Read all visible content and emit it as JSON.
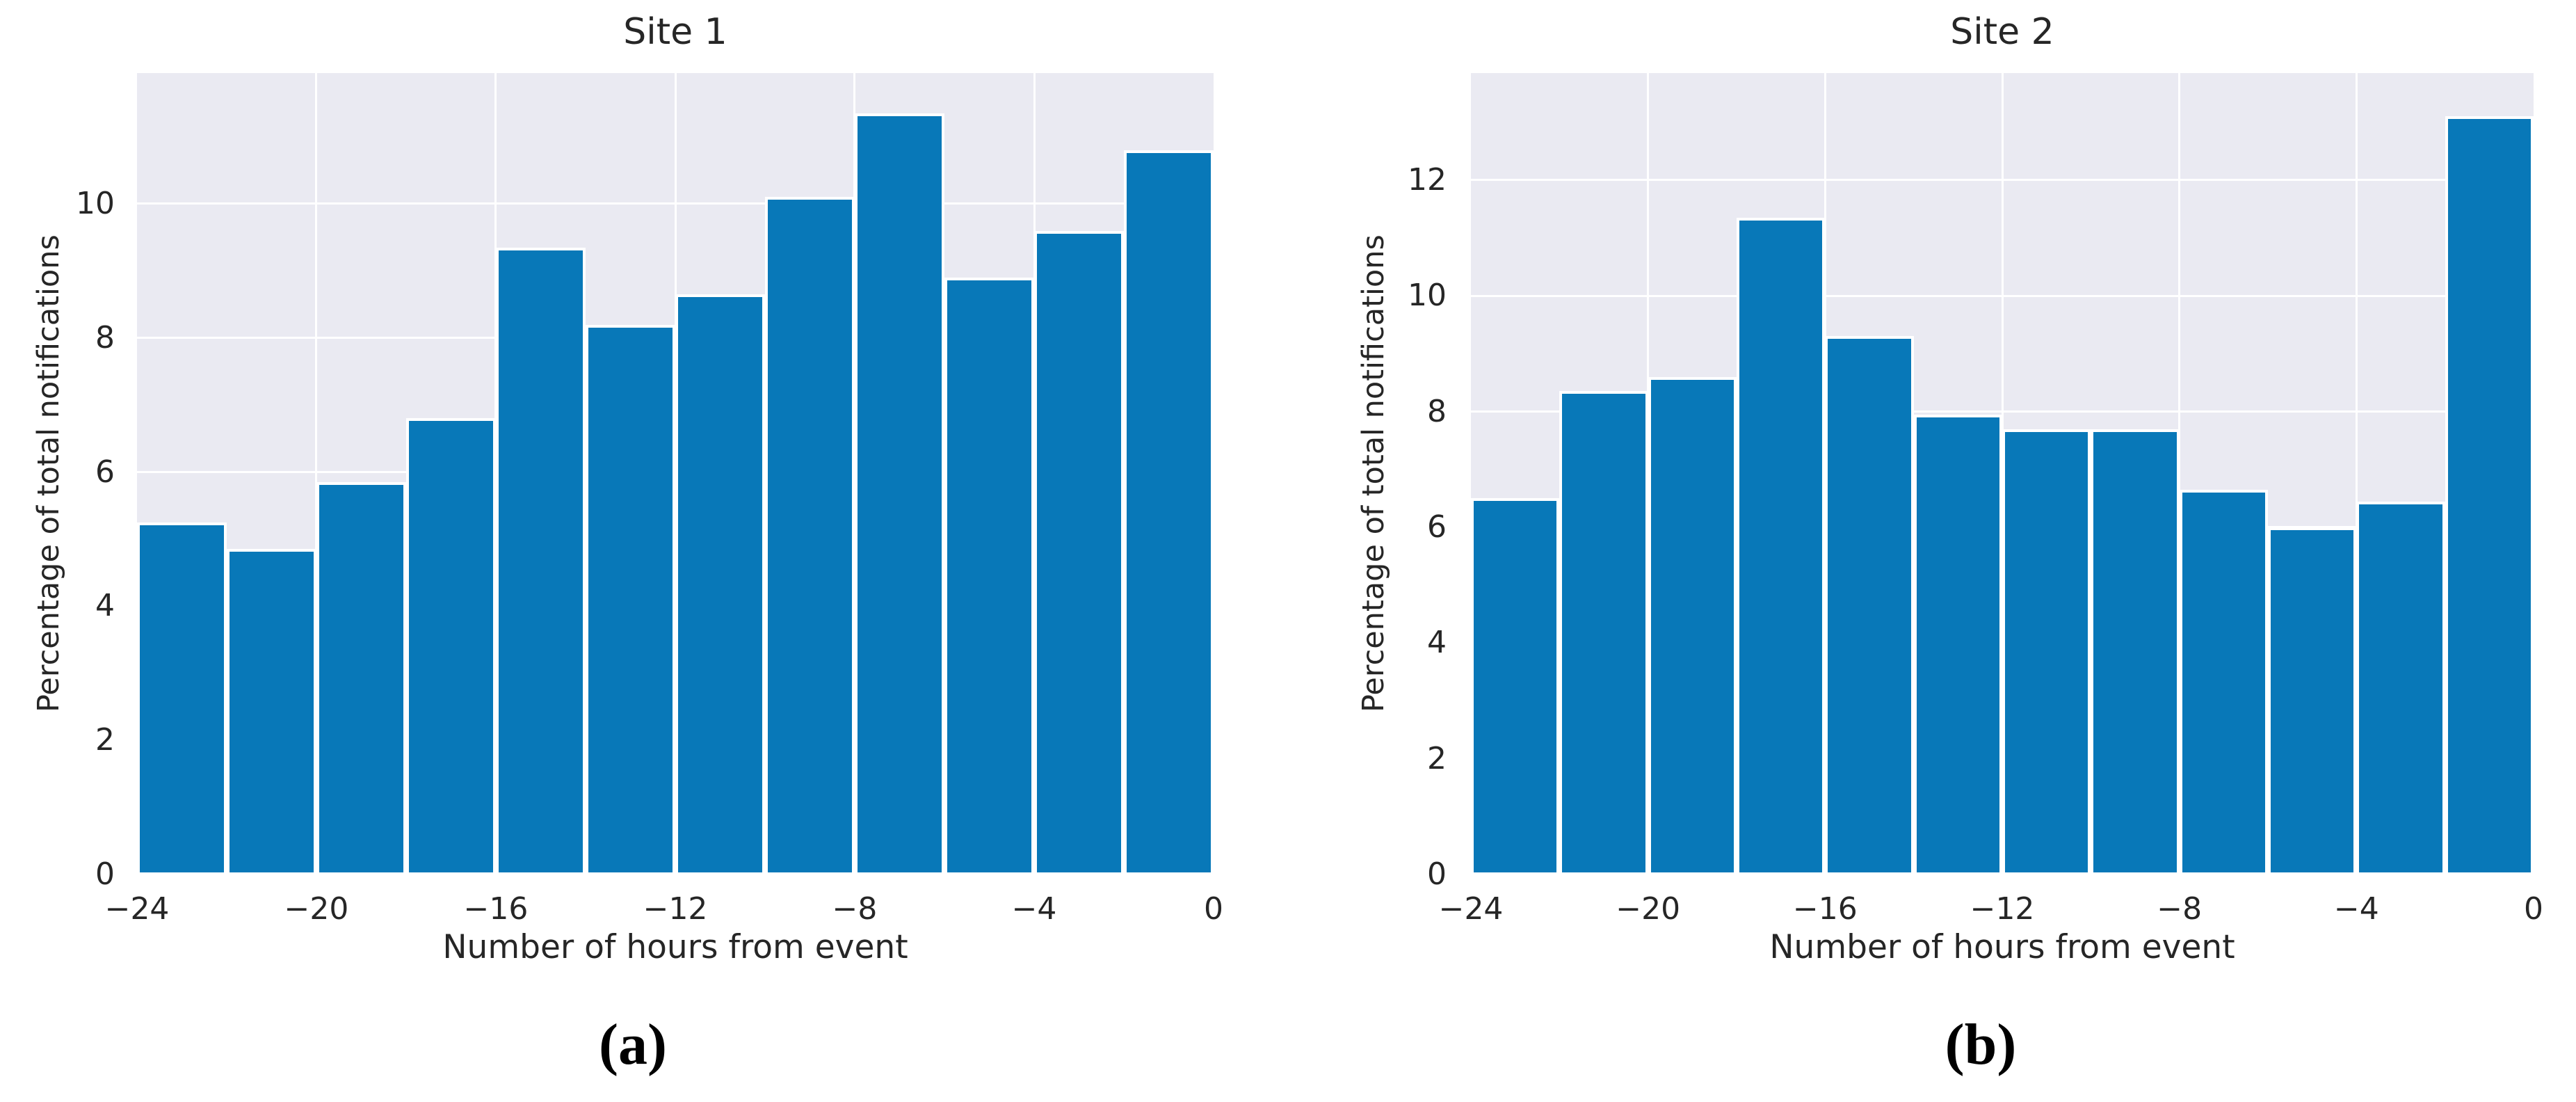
{
  "page": {
    "background": "#ffffff"
  },
  "styles": {
    "bar_color": "#0878b8",
    "plot_background": "#eaeaf2",
    "grid_color": "#ffffff",
    "text_color": "#262626"
  },
  "chart_data": [
    {
      "type": "bar",
      "subtype": "histogram",
      "title": "Site 1",
      "xlabel": "Number of hours from event",
      "ylabel": "Percentage of total notifications",
      "caption": "(a)",
      "bin_edges": [
        -24,
        -22,
        -20,
        -18,
        -16,
        -14,
        -12,
        -10,
        -8,
        -6,
        -4,
        -2,
        0
      ],
      "values": [
        5.25,
        4.85,
        5.85,
        6.8,
        9.35,
        8.2,
        8.65,
        10.1,
        11.35,
        8.9,
        9.6,
        10.8
      ],
      "xticks": [
        "−24",
        "−20",
        "−16",
        "−12",
        "−8",
        "−4",
        "0"
      ],
      "yticks": [
        0,
        2,
        4,
        6,
        8,
        10
      ],
      "xlim": [
        -24,
        0
      ],
      "ylim": [
        0,
        11.95
      ],
      "grid": true,
      "legend": false
    },
    {
      "type": "bar",
      "subtype": "histogram",
      "title": "Site 2",
      "xlabel": "Number of hours from event",
      "ylabel": "Percentage of total notifications",
      "caption": "(b)",
      "bin_edges": [
        -24,
        -22,
        -20,
        -18,
        -16,
        -14,
        -12,
        -10,
        -8,
        -6,
        -4,
        -2,
        0
      ],
      "values": [
        6.5,
        8.35,
        8.6,
        11.35,
        9.3,
        7.95,
        7.7,
        7.7,
        6.65,
        6.0,
        6.45,
        13.1
      ],
      "xticks": [
        "−24",
        "−20",
        "−16",
        "−12",
        "−8",
        "−4",
        "0"
      ],
      "yticks": [
        0,
        2,
        4,
        6,
        8,
        10,
        12
      ],
      "xlim": [
        -24,
        0
      ],
      "ylim": [
        0,
        13.85
      ],
      "grid": true,
      "legend": false
    }
  ]
}
